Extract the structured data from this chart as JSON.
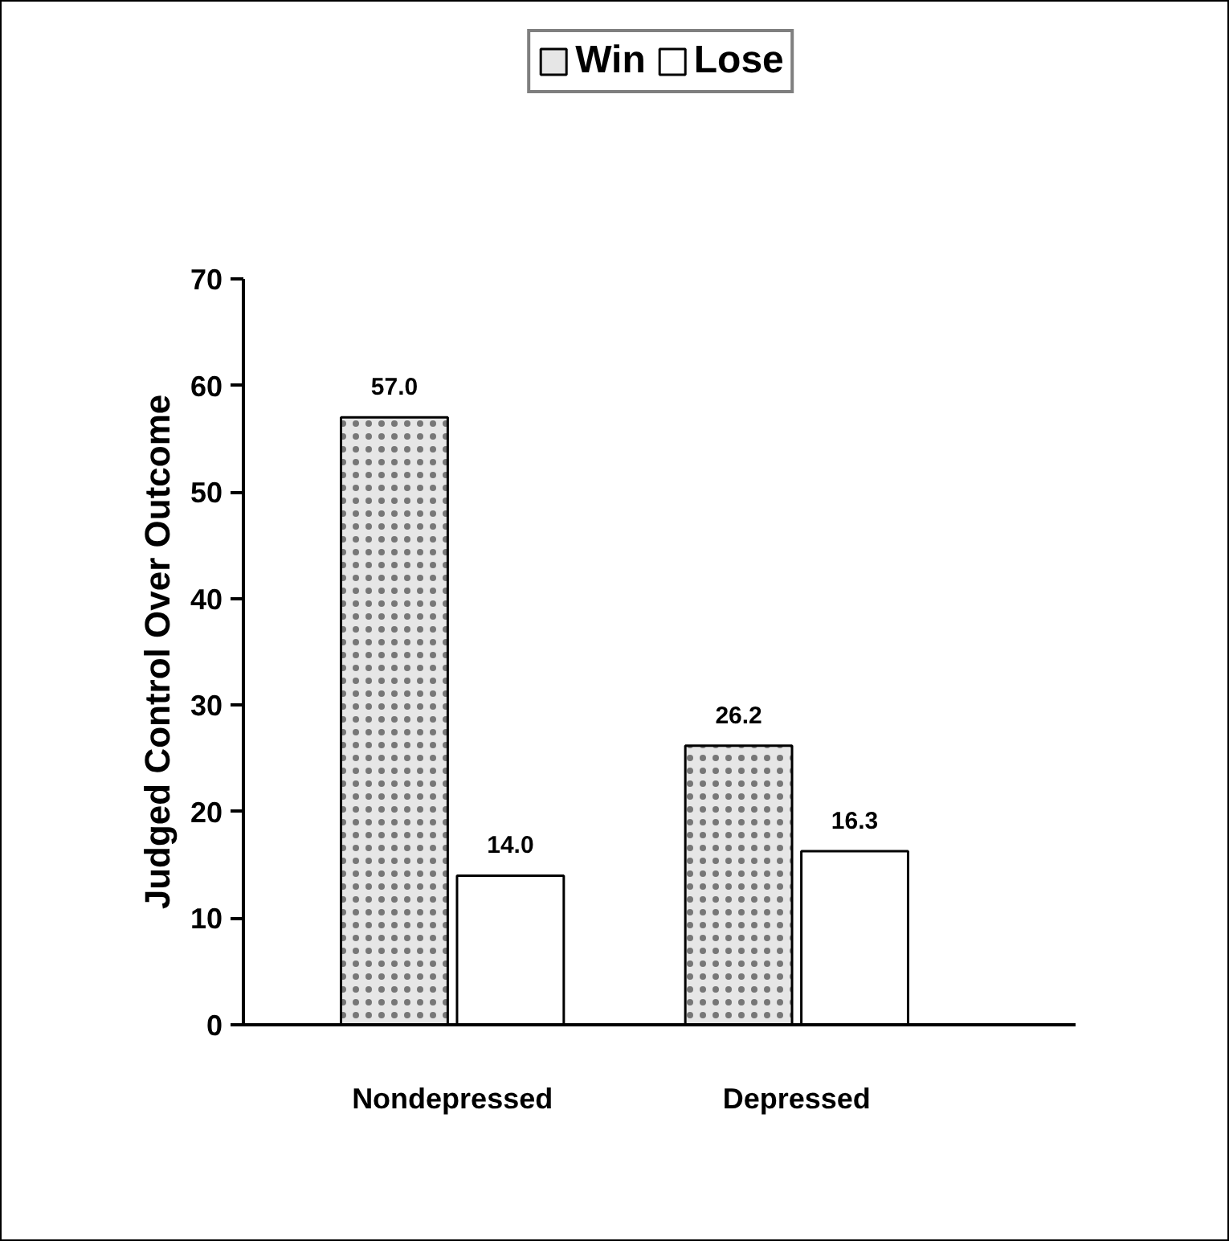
{
  "chart_data": {
    "type": "bar",
    "ylabel": "Judged Control Over Outcome",
    "categories": [
      "Nondepressed",
      "Depressed"
    ],
    "series": [
      {
        "name": "Win",
        "color": "#e6e6e6",
        "values": [
          57.0,
          26.2
        ],
        "value_labels": [
          "57.0",
          "26.2"
        ]
      },
      {
        "name": "Lose",
        "color": "#ffffff",
        "values": [
          14.0,
          16.3
        ],
        "value_labels": [
          "14.0",
          "16.3"
        ]
      }
    ],
    "ylim": [
      0,
      70
    ],
    "yticks": [
      0,
      10,
      20,
      30,
      40,
      50,
      60,
      70
    ],
    "grid": false,
    "legend": "top"
  }
}
